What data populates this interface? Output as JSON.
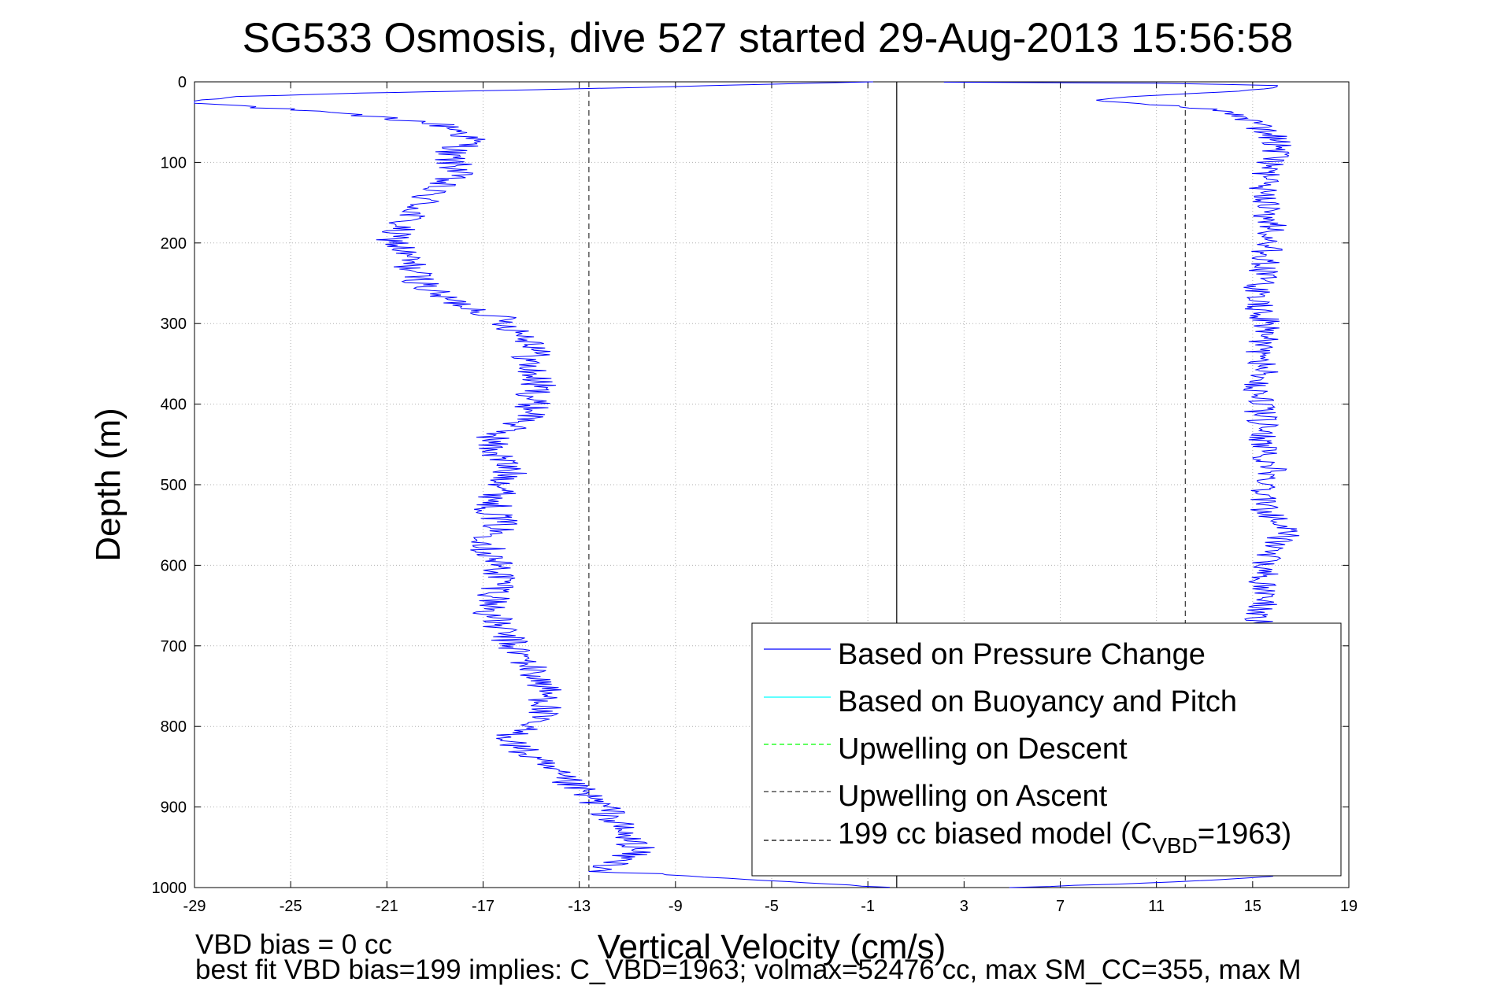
{
  "chart_data": {
    "type": "line",
    "title": "SG533 Osmosis, dive 527 started 29-Aug-2013 15:56:58",
    "xlabel": "Vertical Velocity (cm/s)",
    "ylabel": "Depth (m)",
    "xlim": [
      -29,
      19
    ],
    "ylim": [
      0,
      1000
    ],
    "y_reversed": true,
    "grid": true,
    "x_ticks": [
      "-29",
      "-25",
      "-21",
      "-17",
      "-13",
      "-9",
      "-5",
      "-1",
      "3",
      "7",
      "11",
      "15",
      "19"
    ],
    "y_ticks": [
      "0",
      "100",
      "200",
      "300",
      "400",
      "500",
      "600",
      "700",
      "800",
      "900",
      "1000"
    ],
    "legend_position": "bottom-right",
    "legend": [
      {
        "label": "Based on Pressure Change",
        "color": "#0000ff",
        "style": "solid"
      },
      {
        "label": "Based on Buoyancy and Pitch",
        "color": "#00ffff",
        "style": "solid"
      },
      {
        "label": "Upwelling on Descent",
        "color": "#00ff00",
        "style": "dashed"
      },
      {
        "label": "Upwelling on Ascent",
        "color": "#333333",
        "style": "dashed"
      },
      {
        "label_main": "199 cc biased model (C",
        "label_sub": "VBD",
        "label_end": "=1963)",
        "color": "#000000",
        "style": "dashed"
      }
    ],
    "series": [
      {
        "name": "Based on Pressure Change",
        "color": "#0000ff",
        "descent": {
          "depth": [
            0,
            8,
            14,
            18,
            22,
            26,
            30,
            35,
            40,
            45,
            50,
            55,
            60,
            65,
            70,
            75,
            80,
            85,
            90,
            100,
            110,
            120,
            130,
            140,
            150,
            160,
            170,
            180,
            190,
            200,
            210,
            220,
            230,
            240,
            250,
            260,
            270,
            280,
            290,
            300,
            310,
            320,
            330,
            340,
            350,
            360,
            370,
            380,
            390,
            400,
            410,
            420,
            430,
            440,
            450,
            460,
            470,
            480,
            490,
            500,
            510,
            520,
            530,
            540,
            550,
            560,
            570,
            580,
            590,
            600,
            610,
            620,
            630,
            640,
            650,
            660,
            670,
            680,
            690,
            700,
            710,
            720,
            730,
            740,
            750,
            760,
            770,
            780,
            790,
            800,
            810,
            820,
            830,
            840,
            850,
            860,
            870,
            880,
            890,
            900,
            910,
            920,
            930,
            940,
            950,
            960,
            970,
            975,
            980,
            985,
            990,
            995,
            1000
          ],
          "velocity": [
            -1,
            -12,
            -22,
            -27,
            -28.5,
            -29,
            -27,
            -25,
            -23,
            -21,
            -19.5,
            -18.5,
            -18,
            -17.8,
            -17.6,
            -17.5,
            -17.8,
            -18.2,
            -18.5,
            -18.3,
            -18,
            -18.5,
            -19,
            -19.3,
            -19.5,
            -19.8,
            -20.2,
            -20.5,
            -20.8,
            -20.6,
            -20.4,
            -20.2,
            -20.0,
            -19.8,
            -19.5,
            -19.2,
            -18.5,
            -17.5,
            -16.5,
            -16,
            -15.5,
            -15,
            -14.6,
            -15,
            -15.2,
            -15.0,
            -14.8,
            -14.7,
            -14.9,
            -15,
            -14.8,
            -15.2,
            -16,
            -16.5,
            -16.7,
            -16.5,
            -16.2,
            -16,
            -15.9,
            -16,
            -16.3,
            -16.5,
            -16.6,
            -16.4,
            -16.3,
            -16.5,
            -16.7,
            -16.8,
            -16.6,
            -16.4,
            -16.3,
            -16.2,
            -16.3,
            -16.5,
            -16.6,
            -16.7,
            -16.5,
            -16.3,
            -16,
            -15.8,
            -15.5,
            -15.2,
            -15,
            -14.7,
            -14.5,
            -14.4,
            -14.3,
            -14.5,
            -14.9,
            -15.3,
            -15.7,
            -15.8,
            -15.4,
            -15.0,
            -14.5,
            -14.0,
            -13.5,
            -13.0,
            -12.5,
            -12,
            -11.7,
            -11.5,
            -11.3,
            -11.0,
            -10.5,
            -11.0,
            -11.5,
            -11.8,
            -12.0,
            -9,
            -6,
            -3,
            0
          ]
        },
        "ascent": {
          "depth": [
            1000,
            995,
            990,
            985,
            980,
            970,
            960,
            950,
            940,
            930,
            920,
            910,
            900,
            890,
            880,
            870,
            860,
            850,
            840,
            830,
            820,
            810,
            800,
            790,
            780,
            770,
            760,
            750,
            740,
            730,
            720,
            710,
            700,
            690,
            680,
            670,
            660,
            650,
            640,
            630,
            620,
            610,
            600,
            590,
            580,
            570,
            560,
            550,
            540,
            530,
            520,
            510,
            500,
            490,
            480,
            470,
            460,
            450,
            440,
            430,
            420,
            410,
            400,
            390,
            380,
            370,
            360,
            350,
            340,
            330,
            320,
            310,
            300,
            290,
            280,
            270,
            260,
            250,
            240,
            230,
            220,
            210,
            200,
            190,
            180,
            170,
            160,
            150,
            140,
            130,
            120,
            110,
            100,
            90,
            80,
            70,
            60,
            50,
            40,
            35,
            30,
            26,
            22,
            18,
            14,
            10,
            5,
            2,
            0
          ],
          "velocity": [
            5,
            10,
            14,
            16,
            18,
            18,
            18,
            18,
            18,
            18,
            18,
            18,
            18,
            18,
            18,
            18,
            18,
            18,
            18,
            18,
            18,
            18,
            18,
            18,
            18,
            18,
            18,
            18,
            18,
            18,
            17,
            16.5,
            16,
            15.7,
            15.5,
            15.3,
            15.3,
            15.5,
            15.6,
            15.5,
            15.4,
            15.5,
            15.6,
            15.5,
            15.6,
            16,
            16.5,
            16.2,
            15.8,
            15.5,
            15.4,
            15.5,
            15.6,
            15.8,
            15.9,
            15.7,
            15.5,
            15.4,
            15.5,
            15.5,
            15.4,
            15.3,
            15.3,
            15.2,
            15.2,
            15.3,
            15.5,
            15.4,
            15.3,
            15.3,
            15.5,
            15.6,
            15.5,
            15.4,
            15.3,
            15.2,
            15.2,
            15.3,
            15.4,
            15.5,
            15.5,
            15.6,
            15.7,
            15.8,
            15.8,
            15.7,
            15.6,
            15.5,
            15.5,
            15.4,
            15.5,
            15.6,
            15.7,
            16,
            16.1,
            15.9,
            15.4,
            15.0,
            14.5,
            13.5,
            12,
            10,
            8,
            10,
            13,
            15,
            16.5,
            12,
            0
          ]
        }
      },
      {
        "name": "Based on Buoyancy and Pitch",
        "color": "#00ffff",
        "values": []
      },
      {
        "name": "Upwelling on Descent",
        "color": "#00ff00",
        "values": []
      },
      {
        "name": "Upwelling on Ascent",
        "color": "#333333",
        "values": []
      }
    ],
    "model_lines": [
      {
        "x": -12.6,
        "style": "dashed",
        "color": "#333333"
      },
      {
        "x": 12.2,
        "style": "dashed",
        "color": "#333333"
      },
      {
        "x": 0.2,
        "style": "solid",
        "color": "#000000"
      }
    ],
    "annotations": [
      "VBD bias = 0 cc",
      "best fit VBD bias=199 implies: C_VBD=1963; volmax=52476 cc, max SM_CC=355, max M"
    ]
  }
}
